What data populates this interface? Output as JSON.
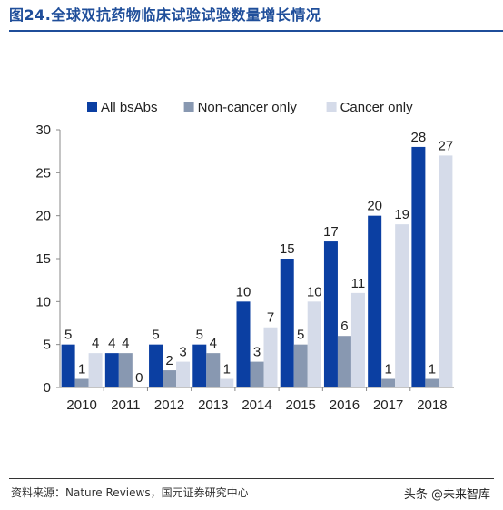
{
  "figure": {
    "title": "图24.全球双抗药物临床试验试验数量增长情况",
    "source": "资料来源：Nature Reviews，国元证券研究中心",
    "watermark": "头条 @未来智库"
  },
  "chart_data": {
    "type": "bar",
    "categories": [
      "2010",
      "2011",
      "2012",
      "2013",
      "2014",
      "2015",
      "2016",
      "2017",
      "2018"
    ],
    "series": [
      {
        "name": "All bsAbs",
        "color": "#0b3fa2",
        "values": [
          5,
          4,
          5,
          5,
          10,
          15,
          17,
          20,
          28
        ]
      },
      {
        "name": "Non-cancer only",
        "color": "#8898b1",
        "values": [
          1,
          4,
          2,
          4,
          3,
          5,
          6,
          1,
          1
        ]
      },
      {
        "name": "Cancer only",
        "color": "#d5dbe9",
        "values": [
          4,
          0,
          3,
          1,
          7,
          10,
          11,
          19,
          27
        ]
      }
    ],
    "ylim": [
      0,
      30
    ],
    "yticks": [
      0,
      5,
      10,
      15,
      20,
      25,
      30
    ],
    "legend_position": "top",
    "grid": false
  }
}
